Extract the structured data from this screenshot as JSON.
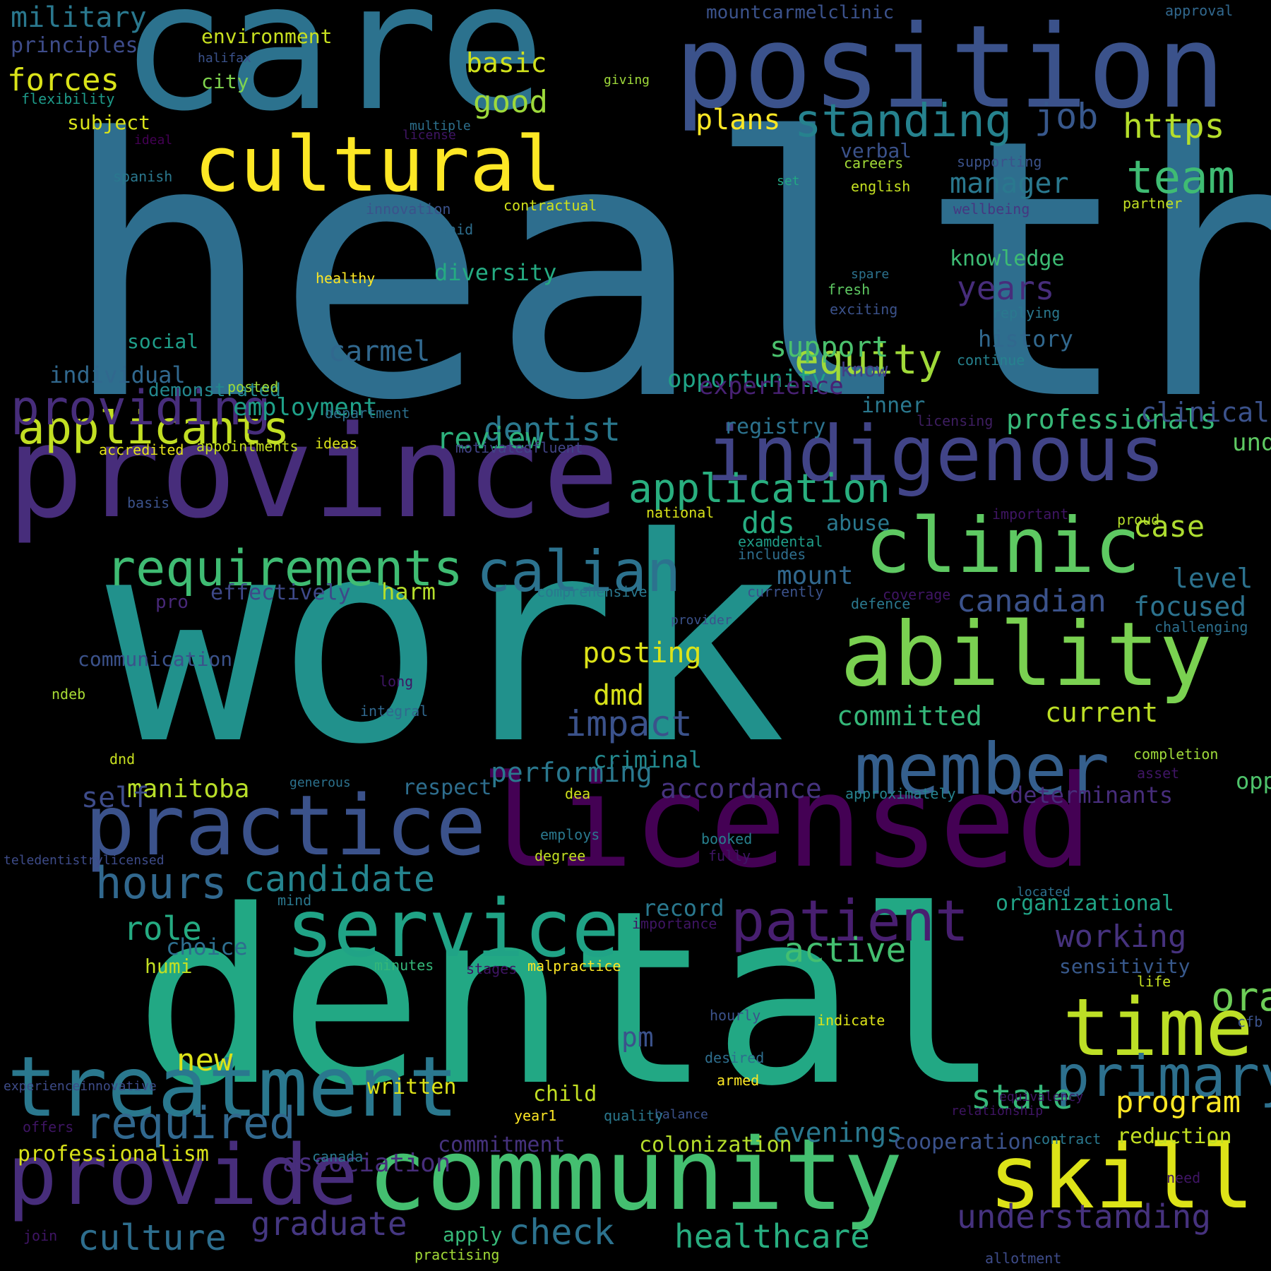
{
  "words": [
    {
      "t": "health",
      "c": "#2e6e8e"
    },
    {
      "t": "work",
      "c": "#21918c"
    },
    {
      "t": "dental",
      "c": "#22a884"
    },
    {
      "t": "care",
      "c": "#2c728e"
    },
    {
      "t": "position",
      "c": "#3b528b"
    },
    {
      "t": "province",
      "c": "#472d7b"
    },
    {
      "t": "licensed",
      "c": "#440154"
    },
    {
      "t": "community",
      "c": "#44bf70"
    },
    {
      "t": "cultural",
      "c": "#fde725"
    },
    {
      "t": "indigenous",
      "c": "#414487"
    },
    {
      "t": "clinic",
      "c": "#5ec962"
    },
    {
      "t": "ability",
      "c": "#7ad151"
    },
    {
      "t": "treatment",
      "c": "#2a788e"
    },
    {
      "t": "practice",
      "c": "#3b528b"
    },
    {
      "t": "service",
      "c": "#20a386"
    },
    {
      "t": "provide",
      "c": "#472d7b"
    },
    {
      "t": "skill",
      "c": "#dde318"
    },
    {
      "t": "time",
      "c": "#bddf26"
    },
    {
      "t": "member",
      "c": "#355f8d"
    },
    {
      "t": "applicants",
      "c": "#c2df23"
    },
    {
      "t": "requirements",
      "c": "#3fbc73"
    },
    {
      "t": "calian",
      "c": "#2c728e"
    },
    {
      "t": "patient",
      "c": "#481f70"
    },
    {
      "t": "primary",
      "c": "#2d708e"
    },
    {
      "t": "standing",
      "c": "#26828e"
    },
    {
      "t": "providing",
      "c": "#472d7b"
    },
    {
      "t": "application",
      "c": "#29af7f"
    },
    {
      "t": "equity",
      "c": "#a0da39"
    },
    {
      "t": "team",
      "c": "#3fbc73"
    },
    {
      "t": "https",
      "c": "#b5de2b"
    },
    {
      "t": "job",
      "c": "#38588c"
    },
    {
      "t": "required",
      "c": "#31688e"
    },
    {
      "t": "hours",
      "c": "#31688e"
    },
    {
      "t": "candidate",
      "c": "#25848e"
    },
    {
      "t": "oral",
      "c": "#6ece58"
    },
    {
      "t": "state",
      "c": "#35b779"
    },
    {
      "t": "culture",
      "c": "#2e6e8e"
    },
    {
      "t": "graduate",
      "c": "#453781"
    },
    {
      "t": "check",
      "c": "#2c728e"
    },
    {
      "t": "healthcare",
      "c": "#28ae80"
    },
    {
      "t": "understanding",
      "c": "#46327e"
    },
    {
      "t": "program",
      "c": "#fde725"
    },
    {
      "t": "dentist",
      "c": "#2a788e"
    },
    {
      "t": "military",
      "c": "#2a788e"
    },
    {
      "t": "principles",
      "c": "#3e4c8a"
    },
    {
      "t": "forces",
      "c": "#dae319"
    },
    {
      "t": "subject",
      "c": "#d8e219"
    },
    {
      "t": "environment",
      "c": "#c8e020"
    },
    {
      "t": "city",
      "c": "#7fd34e"
    },
    {
      "t": "basic",
      "c": "#d0e11c"
    },
    {
      "t": "good",
      "c": "#9dd93b"
    },
    {
      "t": "plans",
      "c": "#fde725"
    },
    {
      "t": "manager",
      "c": "#2a788e"
    },
    {
      "t": "knowledge",
      "c": "#3dbc74"
    },
    {
      "t": "years",
      "c": "#472d7b"
    },
    {
      "t": "support",
      "c": "#4ac16d"
    },
    {
      "t": "history",
      "c": "#31688e"
    },
    {
      "t": "professionals",
      "c": "#37b878"
    },
    {
      "t": "registry",
      "c": "#2c728e"
    },
    {
      "t": "carmel",
      "c": "#31688e"
    },
    {
      "t": "diversity",
      "c": "#25ab82"
    },
    {
      "t": "review",
      "c": "#2db27d"
    },
    {
      "t": "opportunity",
      "c": "#20a386"
    },
    {
      "t": "experience",
      "c": "#482173"
    },
    {
      "t": "employment",
      "c": "#1fa088"
    },
    {
      "t": "individual",
      "c": "#31688e"
    },
    {
      "t": "social",
      "c": "#1f9e89"
    },
    {
      "t": "demonstrated",
      "c": "#23888e"
    },
    {
      "t": "understands",
      "c": "#5ec962"
    },
    {
      "t": "clinical",
      "c": "#3b528b"
    },
    {
      "t": "dds",
      "c": "#26ad81"
    },
    {
      "t": "abuse",
      "c": "#2a788e"
    },
    {
      "t": "case",
      "c": "#addc30"
    },
    {
      "t": "mount",
      "c": "#31688e"
    },
    {
      "t": "canadian",
      "c": "#3b528b"
    },
    {
      "t": "level",
      "c": "#2c728e"
    },
    {
      "t": "focused",
      "c": "#2c728e"
    },
    {
      "t": "dmd",
      "c": "#d8e219"
    },
    {
      "t": "posting",
      "c": "#dde318"
    },
    {
      "t": "impact",
      "c": "#3b528b"
    },
    {
      "t": "committed",
      "c": "#35b779"
    },
    {
      "t": "current",
      "c": "#bddf26"
    },
    {
      "t": "criminal",
      "c": "#23898e"
    },
    {
      "t": "manitoba",
      "c": "#b8de29"
    },
    {
      "t": "accordance",
      "c": "#46337f"
    },
    {
      "t": "determinants",
      "c": "#472d7b"
    },
    {
      "t": "respect",
      "c": "#2e6e8e"
    },
    {
      "t": "opportunities",
      "c": "#4ec36b"
    },
    {
      "t": "performing",
      "c": "#2a788e"
    },
    {
      "t": "effectively",
      "c": "#3e4989"
    },
    {
      "t": "harm",
      "c": "#b5de2b"
    },
    {
      "t": "pro",
      "c": "#482878"
    },
    {
      "t": "communication",
      "c": "#3b528b"
    },
    {
      "t": "self",
      "c": "#3e4c8a"
    },
    {
      "t": "role",
      "c": "#25ab82"
    },
    {
      "t": "choice",
      "c": "#2e6e8e"
    },
    {
      "t": "humi",
      "c": "#c2df23"
    },
    {
      "t": "active",
      "c": "#44bf70"
    },
    {
      "t": "working",
      "c": "#46327e"
    },
    {
      "t": "sensitivity",
      "c": "#38598c"
    },
    {
      "t": "organizational",
      "c": "#20a386"
    },
    {
      "t": "record",
      "c": "#2a788e"
    },
    {
      "t": "new",
      "c": "#dde318"
    },
    {
      "t": "pm",
      "c": "#3b528b"
    },
    {
      "t": "evenings",
      "c": "#2a788e"
    },
    {
      "t": "association",
      "c": "#472d7b"
    },
    {
      "t": "written",
      "c": "#dde318"
    },
    {
      "t": "child",
      "c": "#c2df23"
    },
    {
      "t": "professionalism",
      "c": "#d8e219"
    },
    {
      "t": "colonization",
      "c": "#b5de2b"
    },
    {
      "t": "commitment",
      "c": "#46327e"
    },
    {
      "t": "cooperation",
      "c": "#3b528b"
    },
    {
      "t": "reduction",
      "c": "#c2df23"
    },
    {
      "t": "apply",
      "c": "#37b878"
    },
    {
      "t": "mountcarmelclinic",
      "c": "#3b528b"
    },
    {
      "t": "approval",
      "c": "#31688e"
    },
    {
      "t": "halifax",
      "c": "#3b528b"
    },
    {
      "t": "flexibility",
      "c": "#1e9b8a"
    },
    {
      "t": "multiple",
      "c": "#2d708e"
    },
    {
      "t": "giving",
      "c": "#9fda3a"
    },
    {
      "t": "license",
      "c": "#3f1564"
    },
    {
      "t": "ideal",
      "c": "#440154"
    },
    {
      "t": "spanish",
      "c": "#2a788e"
    },
    {
      "t": "verbal",
      "c": "#3b528b"
    },
    {
      "t": "careers",
      "c": "#a2da37"
    },
    {
      "t": "supporting",
      "c": "#3b528b"
    },
    {
      "t": "english",
      "c": "#c5e021"
    },
    {
      "t": "set",
      "c": "#22a884"
    },
    {
      "t": "wellbeing",
      "c": "#453781"
    },
    {
      "t": "partner",
      "c": "#c2df23"
    },
    {
      "t": "innovation",
      "c": "#3b528b"
    },
    {
      "t": "contractual",
      "c": "#d2e21b"
    },
    {
      "t": "paid",
      "c": "#2e6e8e"
    },
    {
      "t": "healthy",
      "c": "#fde725"
    },
    {
      "t": "spare",
      "c": "#2c728e"
    },
    {
      "t": "fresh",
      "c": "#5ec962"
    },
    {
      "t": "exciting",
      "c": "#3b528b"
    },
    {
      "t": "replying",
      "c": "#2a788e"
    },
    {
      "t": "continue",
      "c": "#26828e"
    },
    {
      "t": "know",
      "c": "#433e85"
    },
    {
      "t": "inner",
      "c": "#2a788e"
    },
    {
      "t": "licensing",
      "c": "#3e1e61"
    },
    {
      "t": "posted",
      "c": "#9fda3a"
    },
    {
      "t": "department",
      "c": "#2d708e"
    },
    {
      "t": "accredited",
      "c": "#e5e419"
    },
    {
      "t": "appointments",
      "c": "#c5e021"
    },
    {
      "t": "ideas",
      "c": "#d8e219"
    },
    {
      "t": "motivatedfluent",
      "c": "#414487"
    },
    {
      "t": "basis",
      "c": "#3b528b"
    },
    {
      "t": "national",
      "c": "#d8e219"
    },
    {
      "t": "important",
      "c": "#3f1564"
    },
    {
      "t": "proud",
      "c": "#b5de2b"
    },
    {
      "t": "examdental",
      "c": "#1f9e89"
    },
    {
      "t": "includes",
      "c": "#2e6e8e"
    },
    {
      "t": "comprehensive",
      "c": "#2a788e"
    },
    {
      "t": "currently",
      "c": "#3b528b"
    },
    {
      "t": "coverage",
      "c": "#3f1564"
    },
    {
      "t": "defence",
      "c": "#2a788e"
    },
    {
      "t": "challenging",
      "c": "#2d708e"
    },
    {
      "t": "provider",
      "c": "#3b528b"
    },
    {
      "t": "long",
      "c": "#3f1564"
    },
    {
      "t": "ndeb",
      "c": "#a8db34"
    },
    {
      "t": "integral",
      "c": "#31688e"
    },
    {
      "t": "generous",
      "c": "#2c728e"
    },
    {
      "t": "dnd",
      "c": "#c8e020"
    },
    {
      "t": "dea",
      "c": "#d0e11c"
    },
    {
      "t": "approximately",
      "c": "#26828e"
    },
    {
      "t": "completion",
      "c": "#9fda3a"
    },
    {
      "t": "asset",
      "c": "#3f1564"
    },
    {
      "t": "teledentistrylicensed",
      "c": "#3e4c8a"
    },
    {
      "t": "employs",
      "c": "#2a788e"
    },
    {
      "t": "booked",
      "c": "#27808e"
    },
    {
      "t": "fully",
      "c": "#3f1564"
    },
    {
      "t": "degree",
      "c": "#c2df23"
    },
    {
      "t": "located",
      "c": "#2d708e"
    },
    {
      "t": "mind",
      "c": "#2a788e"
    },
    {
      "t": "importance",
      "c": "#3f1564"
    },
    {
      "t": "minutes",
      "c": "#35b779"
    },
    {
      "t": "stages",
      "c": "#3f1564"
    },
    {
      "t": "malpractice",
      "c": "#fde725"
    },
    {
      "t": "experienceinnovative",
      "c": "#3e4c8a"
    },
    {
      "t": "offers",
      "c": "#3f1564"
    },
    {
      "t": "life",
      "c": "#c5e021"
    },
    {
      "t": "hourly",
      "c": "#3b528b"
    },
    {
      "t": "indicate",
      "c": "#dde318"
    },
    {
      "t": "relationship",
      "c": "#3f1564"
    },
    {
      "t": "equivalency",
      "c": "#3f1564"
    },
    {
      "t": "cfb",
      "c": "#3b528b"
    },
    {
      "t": "desired",
      "c": "#2e6e8e"
    },
    {
      "t": "armed",
      "c": "#fde725"
    },
    {
      "t": "balance",
      "c": "#3b528b"
    },
    {
      "t": "year1",
      "c": "#fde725"
    },
    {
      "t": "quality",
      "c": "#2a788e"
    },
    {
      "t": "canada",
      "c": "#2a788e"
    },
    {
      "t": "contract",
      "c": "#2a788e"
    },
    {
      "t": "need",
      "c": "#3f1564"
    },
    {
      "t": "join",
      "c": "#3f1564"
    },
    {
      "t": "practising",
      "c": "#a2da37"
    },
    {
      "t": "allotment",
      "c": "#3e4c8a"
    }
  ]
}
